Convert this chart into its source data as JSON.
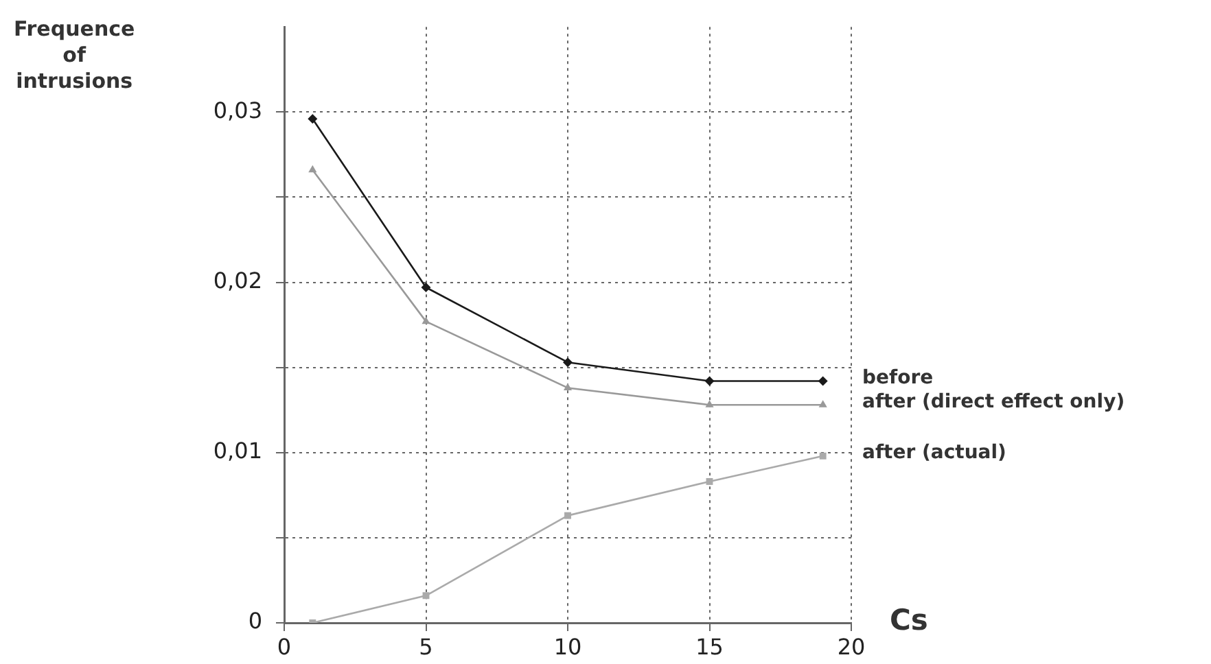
{
  "chart_data": {
    "type": "line",
    "xlabel": "Cs",
    "ylabel": "Frequence\nof\nintrusions",
    "xlim": [
      0,
      20
    ],
    "xticks": [
      0,
      5,
      10,
      15,
      20
    ],
    "ylim": [
      0,
      0.035
    ],
    "yticks": [
      0,
      {
        "value": 0.005,
        "label": null
      },
      {
        "value": 0.01,
        "label": "0,01"
      },
      {
        "value": 0.015,
        "label": null
      },
      {
        "value": 0.02,
        "label": "0,02"
      },
      {
        "value": 0.025,
        "label": null
      },
      {
        "value": 0.03,
        "label": "0,03"
      }
    ],
    "grid": true,
    "legend": false,
    "line_style": "solid",
    "series": [
      {
        "name": "before",
        "color": "#1a1a1a",
        "marker": "diamond",
        "x": [
          1,
          5,
          10,
          15,
          19
        ],
        "values": [
          0.0296,
          0.0197,
          0.0153,
          0.0142,
          0.0142
        ]
      },
      {
        "name": "after (direct effect only)",
        "color": "#999999",
        "marker": "triangle",
        "x": [
          1,
          5,
          10,
          15,
          19
        ],
        "values": [
          0.0266,
          0.0177,
          0.0138,
          0.0128,
          0.0128
        ]
      },
      {
        "name": "after (actual)",
        "color": "#aaaaaa",
        "marker": "square",
        "x": [
          1,
          5,
          10,
          15,
          19
        ],
        "values": [
          0,
          0.0016,
          0.0063,
          0.0083,
          0.0098
        ]
      }
    ]
  }
}
